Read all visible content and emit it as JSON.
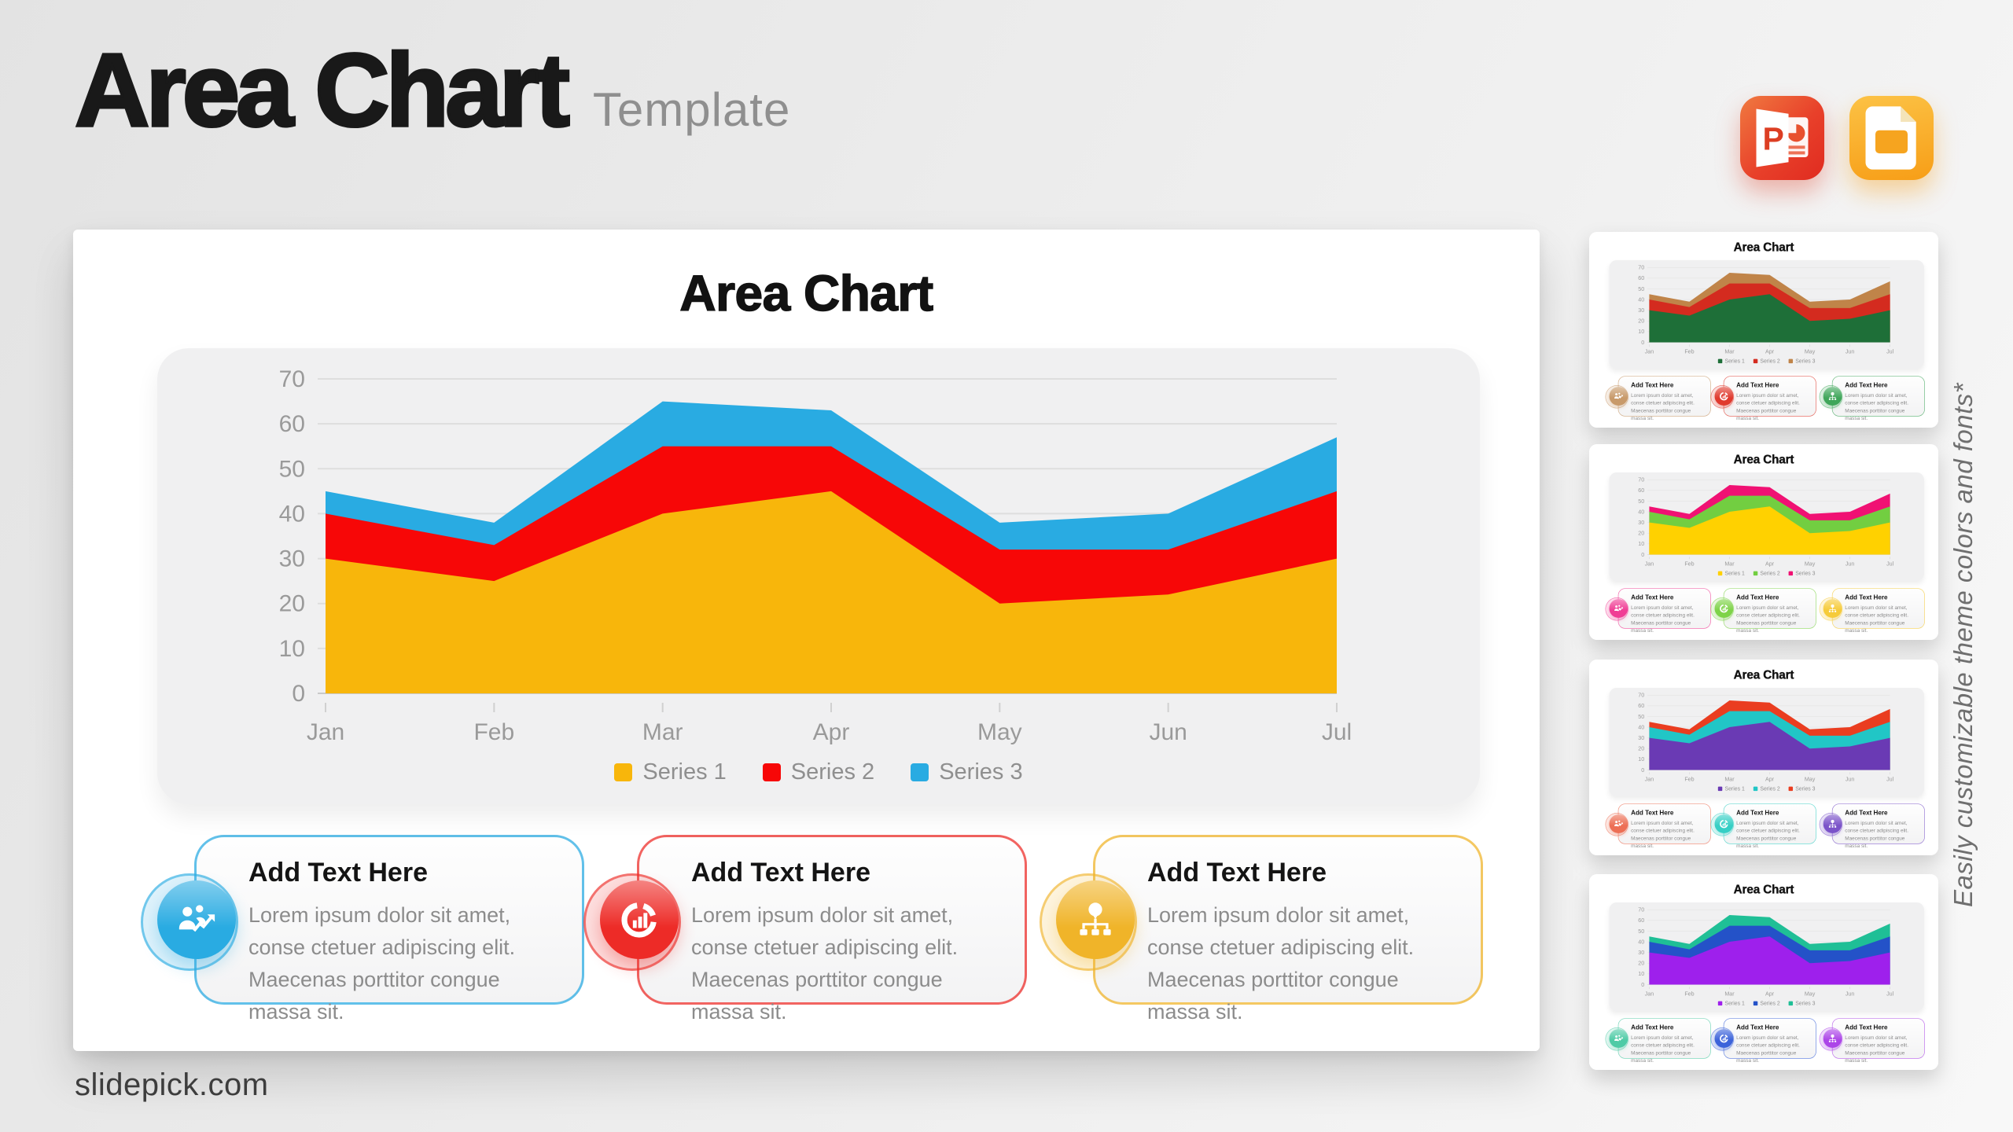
{
  "header": {
    "title": "Area Chart",
    "subtitle": "Template"
  },
  "app_icons": {
    "powerpoint": "PowerPoint",
    "google_slides": "Google Slides"
  },
  "slide": {
    "title": "Area Chart",
    "cards": [
      {
        "title": "Add Text Here",
        "body": "Lorem ipsum dolor sit amet, conse ctetuer adipiscing elit. Maecenas porttitor congue massa sit.",
        "icon": "people-growth-icon"
      },
      {
        "title": "Add Text Here",
        "body": "Lorem ipsum dolor sit amet, conse ctetuer adipiscing elit. Maecenas porttitor congue massa sit.",
        "icon": "donut-chart-icon"
      },
      {
        "title": "Add Text Here",
        "body": "Lorem ipsum dolor sit amet, conse ctetuer adipiscing elit. Maecenas porttitor congue massa sit.",
        "icon": "idea-tree-icon"
      }
    ]
  },
  "chart_data": {
    "type": "area",
    "title": "Area Chart",
    "categories": [
      "Jan",
      "Feb",
      "Mar",
      "Apr",
      "May",
      "Jun",
      "Jul"
    ],
    "series": [
      {
        "name": "Series 1",
        "values": [
          30,
          25,
          40,
          45,
          20,
          22,
          30
        ]
      },
      {
        "name": "Series 2",
        "values": [
          40,
          33,
          55,
          55,
          32,
          32,
          45
        ]
      },
      {
        "name": "Series 3",
        "values": [
          45,
          38,
          65,
          63,
          38,
          40,
          57
        ]
      }
    ],
    "ylim": [
      0,
      70
    ],
    "yticks": [
      0,
      10,
      20,
      30,
      40,
      50,
      60,
      70
    ],
    "xlabel": "",
    "ylabel": "",
    "grid": true,
    "legend_position": "bottom",
    "overlap": "series drawn as overlapping areas, Series 3 behind, Series 1 in front"
  },
  "themes": {
    "main": {
      "series": [
        "#F8B60B",
        "#F70707",
        "#29ABE2"
      ],
      "cards": [
        "#29ABE2",
        "#ED2B27",
        "#F0B429"
      ]
    },
    "thumbnails": [
      {
        "series": [
          "#1E6F38",
          "#D42B1F",
          "#C08449"
        ],
        "cards": [
          "#C89A6A",
          "#E03A2E",
          "#3FA65A"
        ]
      },
      {
        "series": [
          "#FFD100",
          "#72CE41",
          "#F01173"
        ],
        "cards": [
          "#F03D95",
          "#7ED348",
          "#F6CB3A"
        ]
      },
      {
        "series": [
          "#6A3AB4",
          "#21C6C6",
          "#EA3D20"
        ],
        "cards": [
          "#ED6F55",
          "#36CFC5",
          "#7B53C9"
        ]
      },
      {
        "series": [
          "#9E20EC",
          "#2452C8",
          "#1FBF96"
        ],
        "cards": [
          "#4FCBA6",
          "#3C63DA",
          "#AC45E8"
        ]
      }
    ]
  },
  "sidebar": {
    "note": "Easily customizable theme colors and fonts*"
  },
  "footer": {
    "watermark": "slidepick.com"
  }
}
